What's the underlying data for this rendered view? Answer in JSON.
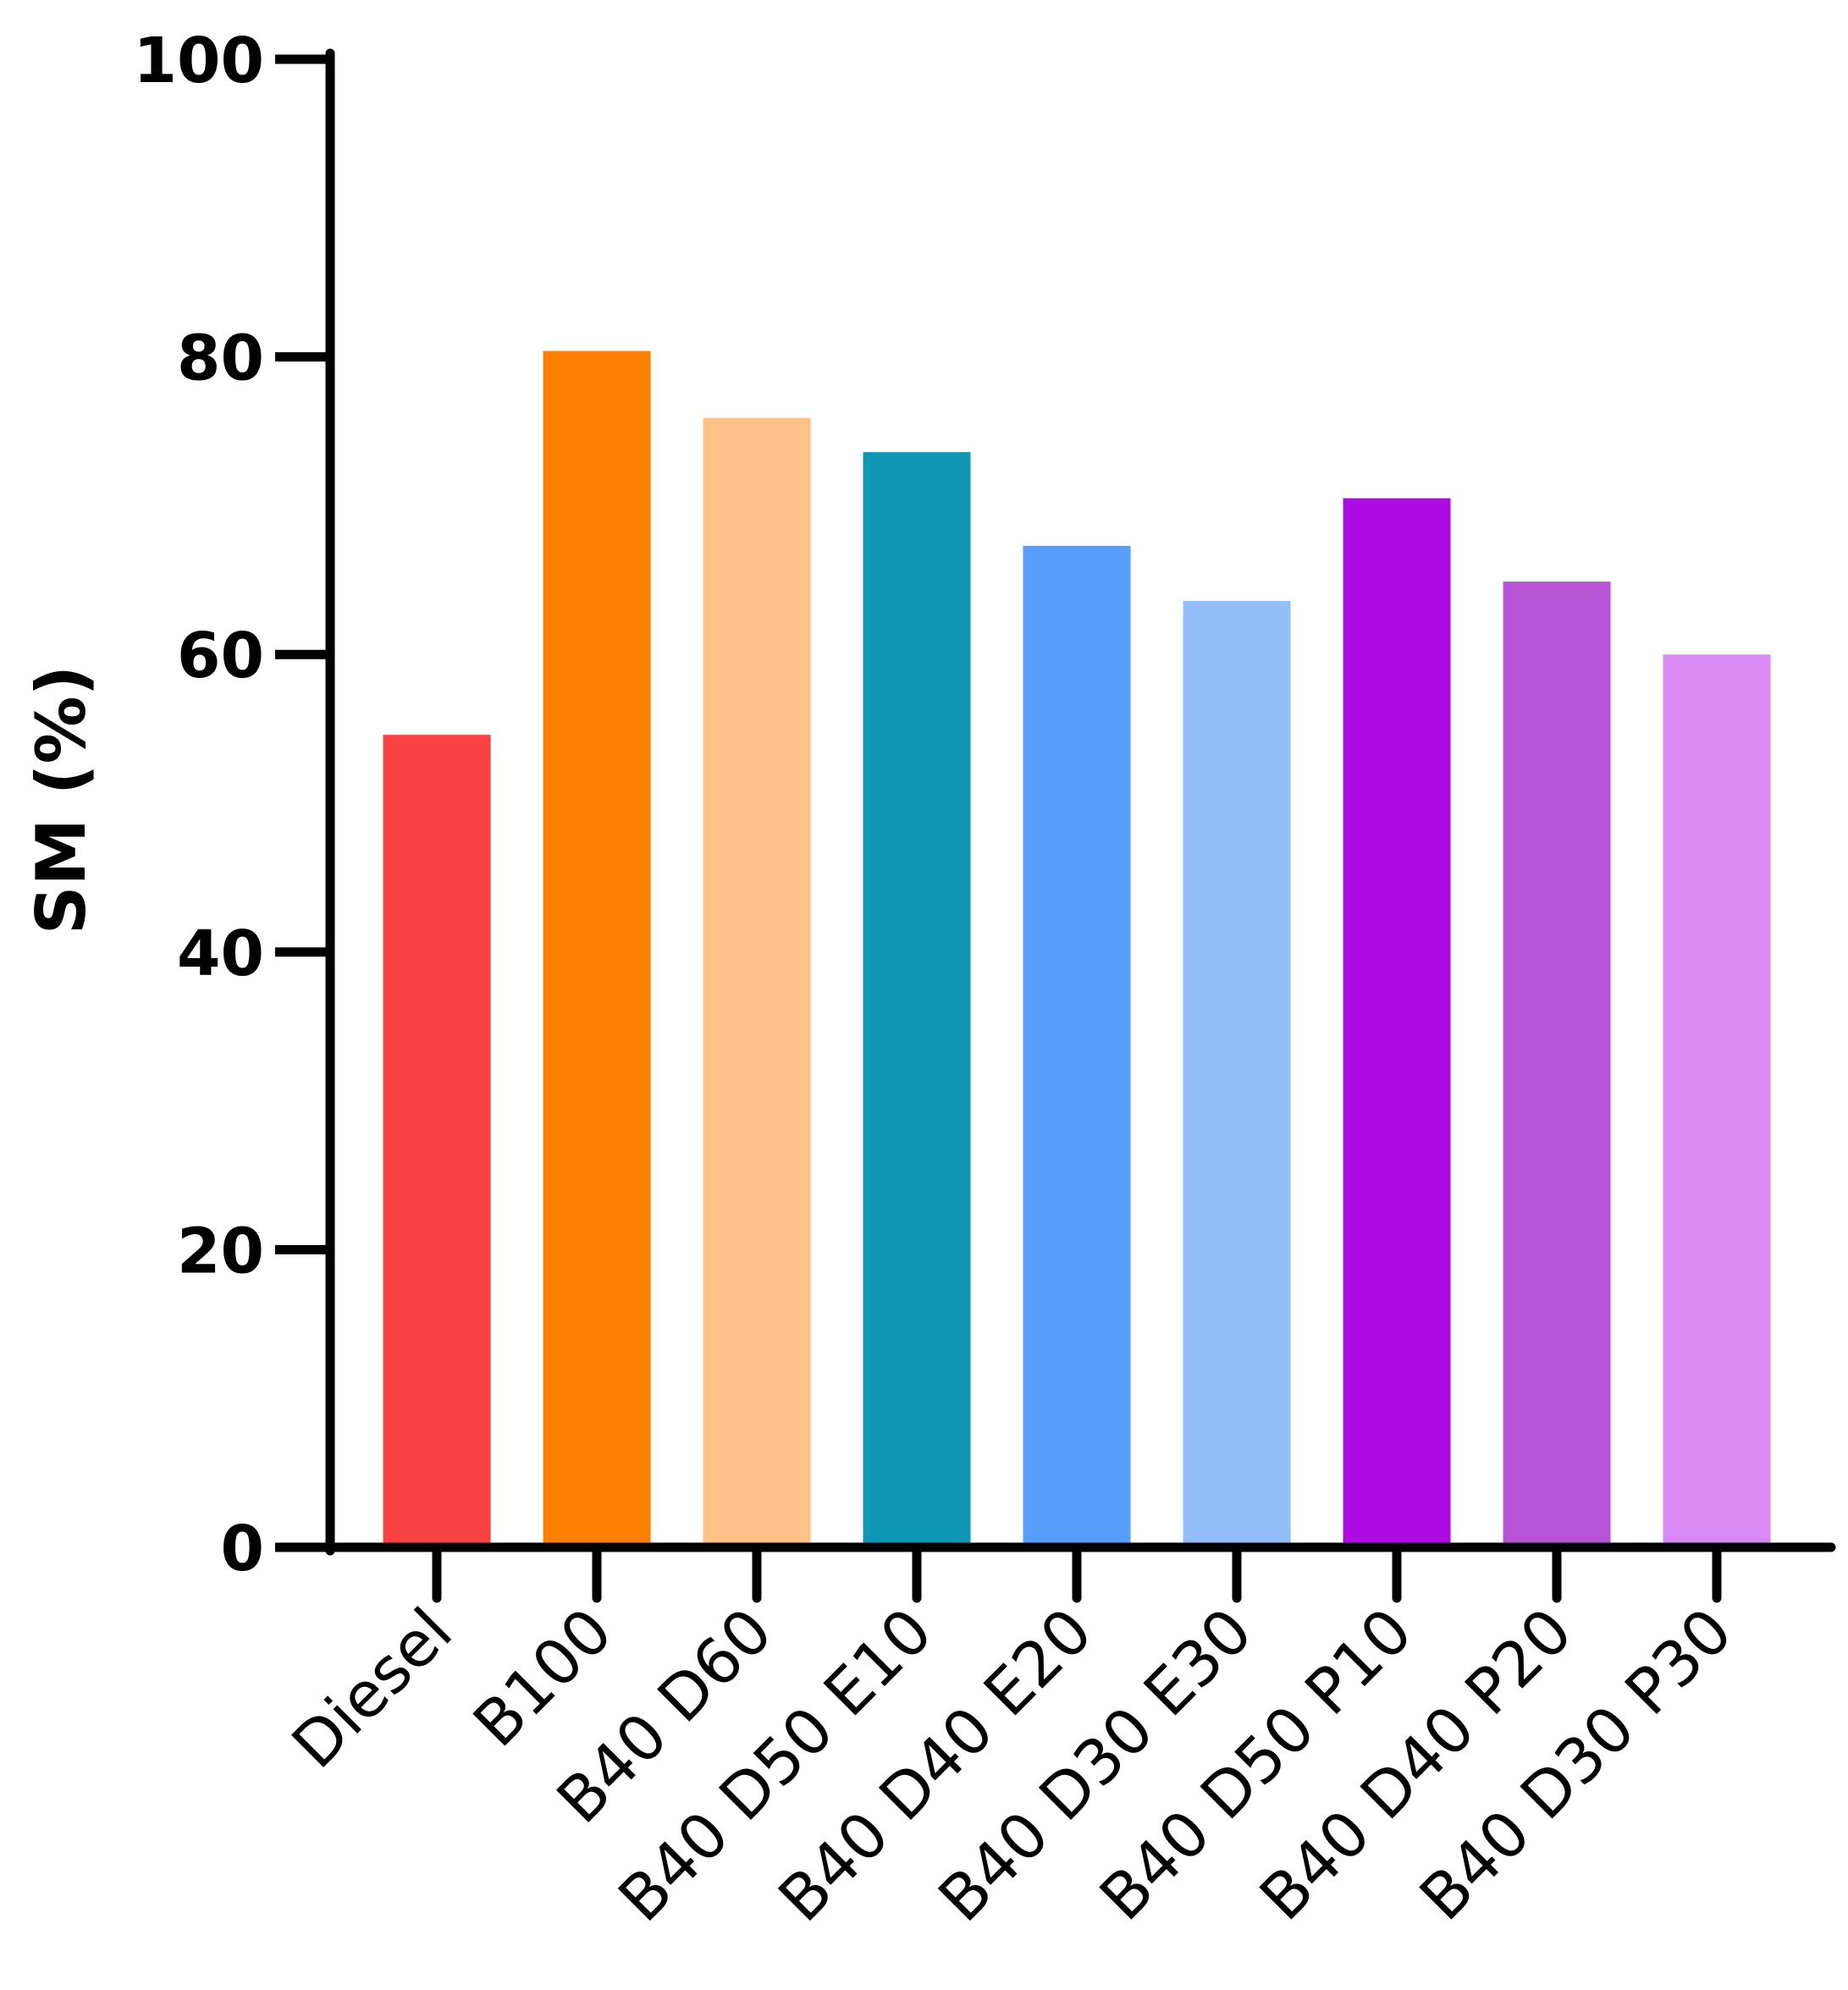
{
  "chart_data": {
    "type": "bar",
    "title": "",
    "xlabel": "",
    "ylabel": "SM (%)",
    "ylim": [
      0,
      100
    ],
    "yticks": [
      "0",
      "20",
      "40",
      "60",
      "80",
      "100"
    ],
    "grid": false,
    "legend": "none",
    "categories": [
      "Diesel",
      "B100",
      "B40 D60",
      "B40 D50 E10",
      "B40 D40 E20",
      "B40 D30 E30",
      "B40 D50 P10",
      "B40 D40 P20",
      "B40 D30 P30"
    ],
    "values": [
      54.6,
      80.4,
      75.9,
      73.6,
      67.3,
      63.6,
      70.5,
      64.9,
      60.0
    ],
    "colors": [
      "#f94144",
      "#ff8000",
      "#ffc185",
      "#1097b4",
      "#579ffa",
      "#93bef8",
      "#ac0ce1",
      "#b755d6",
      "#d98af5"
    ]
  }
}
